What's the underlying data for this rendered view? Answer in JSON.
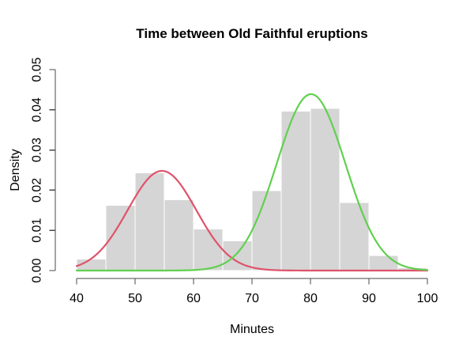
{
  "chart_data": {
    "type": "bar",
    "subtype": "histogram-with-density-curves",
    "title": "Time between Old Faithful eruptions",
    "xlabel": "Minutes",
    "ylabel": "Density",
    "xlim": [
      40,
      100
    ],
    "ylim": [
      0,
      0.05
    ],
    "x_ticks": [
      40,
      50,
      60,
      70,
      80,
      90,
      100
    ],
    "y_ticks": [
      0,
      0.01,
      0.02,
      0.03,
      0.04,
      0.05
    ],
    "y_tick_labels": [
      "0.00",
      "0.01",
      "0.02",
      "0.03",
      "0.04",
      "0.05"
    ],
    "grid": false,
    "legend": "none",
    "histogram": {
      "name": "waiting-time-histogram",
      "bin_edges": [
        40,
        45,
        50,
        55,
        60,
        65,
        70,
        75,
        80,
        85,
        90,
        95,
        100
      ],
      "densities": [
        0.0029,
        0.0162,
        0.0243,
        0.0176,
        0.0103,
        0.0074,
        0.0199,
        0.0397,
        0.0404,
        0.0169,
        0.0037,
        0.0007
      ]
    },
    "curves": [
      {
        "name": "short-wait-component",
        "color": "#DF536B",
        "mean": 54.6,
        "sd": 5.87,
        "peak_density": 0.0248
      },
      {
        "name": "long-wait-component",
        "color": "#61D04F",
        "mean": 80.1,
        "sd": 5.87,
        "peak_density": 0.0439
      }
    ],
    "colors": {
      "bar_fill": "#D5D5D5",
      "bar_border": "#FFFFFF",
      "axis": "#4A4A4A",
      "text": "#000000",
      "background": "#FFFFFF"
    }
  }
}
